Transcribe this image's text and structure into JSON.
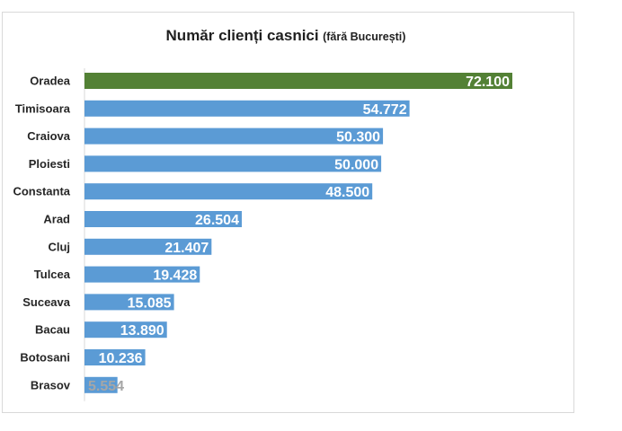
{
  "chart_data": {
    "type": "bar",
    "orientation": "horizontal",
    "title": "Număr clienți casnici",
    "subtitle": "(fără București)",
    "xlabel": "",
    "ylabel": "",
    "categories": [
      "Oradea",
      "Timisoara",
      "Craiova",
      "Ploiesti",
      "Constanta",
      "Arad",
      "Cluj",
      "Tulcea",
      "Suceava",
      "Bacau",
      "Botosani",
      "Brasov"
    ],
    "values": [
      72100,
      54772,
      50300,
      50000,
      48500,
      26504,
      21407,
      19428,
      15085,
      13890,
      10236,
      5554
    ],
    "data_labels": [
      "72.100",
      "54.772",
      "50.300",
      "50.000",
      "48.500",
      "26.504",
      "21.407",
      "19.428",
      "15.085",
      "13.890",
      "10.236",
      "5.554"
    ],
    "highlight_category": "Oradea",
    "xlim": [
      0,
      72100
    ],
    "grid": false,
    "legend": "none",
    "colors": {
      "bar": "#5b9bd5",
      "highlight": "#538135",
      "label": "#ffffff",
      "last_label": "#a6a6a6",
      "category_text": "#262626",
      "axis": "#d9d9d9"
    }
  }
}
